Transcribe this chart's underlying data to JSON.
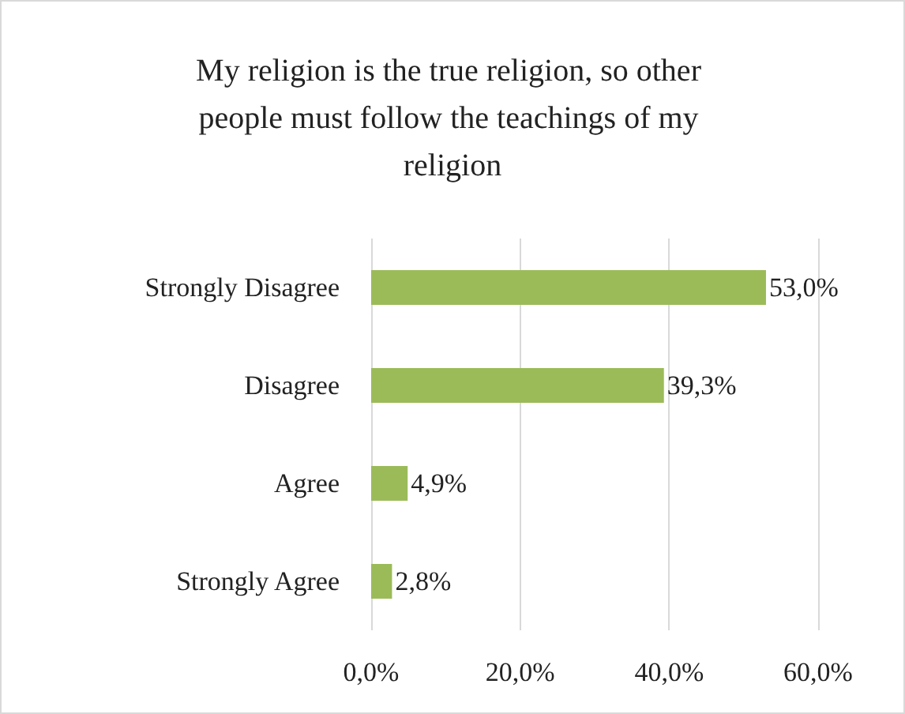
{
  "chart_data": {
    "type": "bar",
    "orientation": "horizontal",
    "title": "My religion is the true religion, so other people must follow the teachings of my religion",
    "categories": [
      "Strongly Disagree",
      "Disagree",
      "Agree",
      "Strongly Agree"
    ],
    "values": [
      53.0,
      39.3,
      4.9,
      2.8
    ],
    "value_labels": [
      "53,0%",
      "39,3%",
      "4,9%",
      "2,8%"
    ],
    "color": "#9bbb59",
    "xlim": [
      0,
      60
    ],
    "xticks": [
      {
        "value": 0,
        "label": "0,0%"
      },
      {
        "value": 20,
        "label": "20,0%"
      },
      {
        "value": 40,
        "label": "40,0%"
      },
      {
        "value": 60,
        "label": "60,0%"
      }
    ],
    "grid": "x"
  }
}
